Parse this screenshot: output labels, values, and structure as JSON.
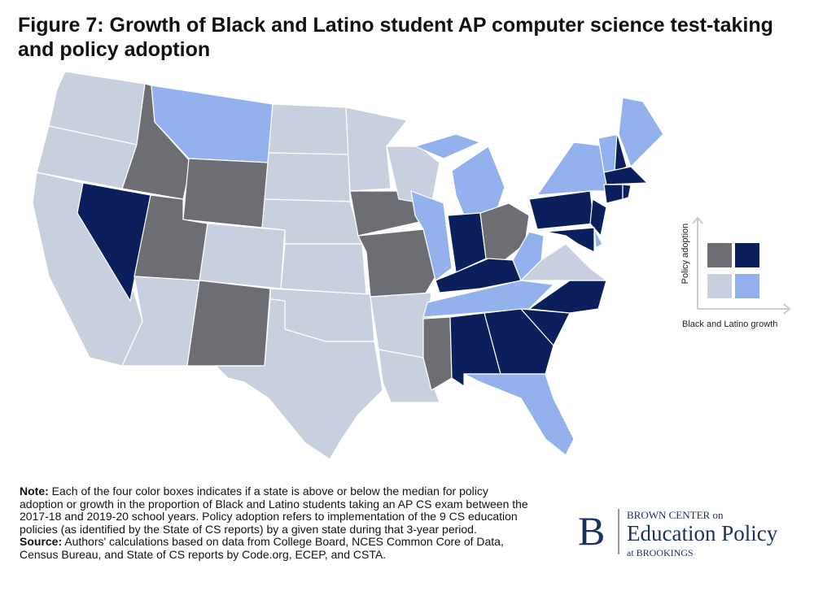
{
  "title": "Figure 7: Growth of Black and Latino student AP computer science test-taking and policy adoption",
  "colors": [
    "#6d6e73",
    "#0b1f5c",
    "#c8d0df",
    "#93b1ec"
  ],
  "legend": {
    "y_label": "Policy adoption",
    "x_label": "Black and Latino growth"
  },
  "note": {
    "label": "Note:",
    "text": "Each of the four color boxes indicates if a state is above or below the median for policy adoption or growth in the proportion of Black and Latino students taking an AP CS exam between the 2017-18 and 2019-20 school years. Policy adoption refers to implementation of the 9 CS education policies (as identified by the State of CS reports) by a given state during that 3-year period."
  },
  "source": {
    "label": "Source:",
    "text": "Authors' calculations based on data from College Board, NCES Common Core of Data, Census Bureau, and State of CS reports by Code.org, ECEP, and CSTA."
  },
  "logo": {
    "letter": "B",
    "line1": "BROWN CENTER on",
    "line2": "Education Policy",
    "line3": "at BROOKINGS"
  }
}
